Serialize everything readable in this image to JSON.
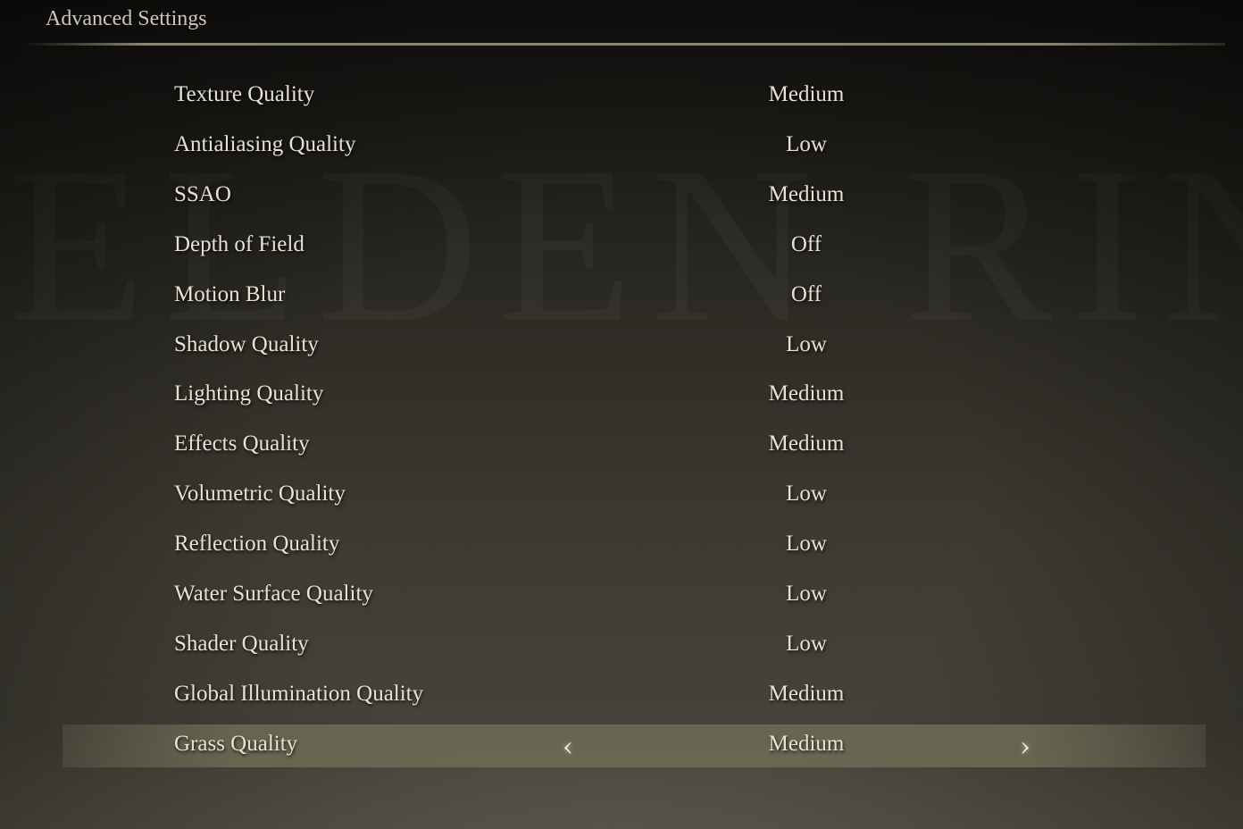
{
  "header": {
    "title": "Advanced Settings"
  },
  "background_logo": "ELDEN RING",
  "settings": [
    {
      "label": "Texture Quality",
      "value": "Medium"
    },
    {
      "label": "Antialiasing Quality",
      "value": "Low"
    },
    {
      "label": "SSAO",
      "value": "Medium"
    },
    {
      "label": "Depth of Field",
      "value": "Off"
    },
    {
      "label": "Motion Blur",
      "value": "Off"
    },
    {
      "label": "Shadow Quality",
      "value": "Low"
    },
    {
      "label": "Lighting Quality",
      "value": "Medium"
    },
    {
      "label": "Effects Quality",
      "value": "Medium"
    },
    {
      "label": "Volumetric Quality",
      "value": "Low"
    },
    {
      "label": "Reflection Quality",
      "value": "Low"
    },
    {
      "label": "Water Surface Quality",
      "value": "Low"
    },
    {
      "label": "Shader Quality",
      "value": "Low"
    },
    {
      "label": "Global Illumination Quality",
      "value": "Medium"
    },
    {
      "label": "Grass Quality",
      "value": "Medium",
      "selected": true
    }
  ],
  "icons": {
    "prev": "chevron-left-icon",
    "next": "chevron-right-icon"
  },
  "colors": {
    "text": "#e6e1d3",
    "highlight": "#6e6c55"
  }
}
